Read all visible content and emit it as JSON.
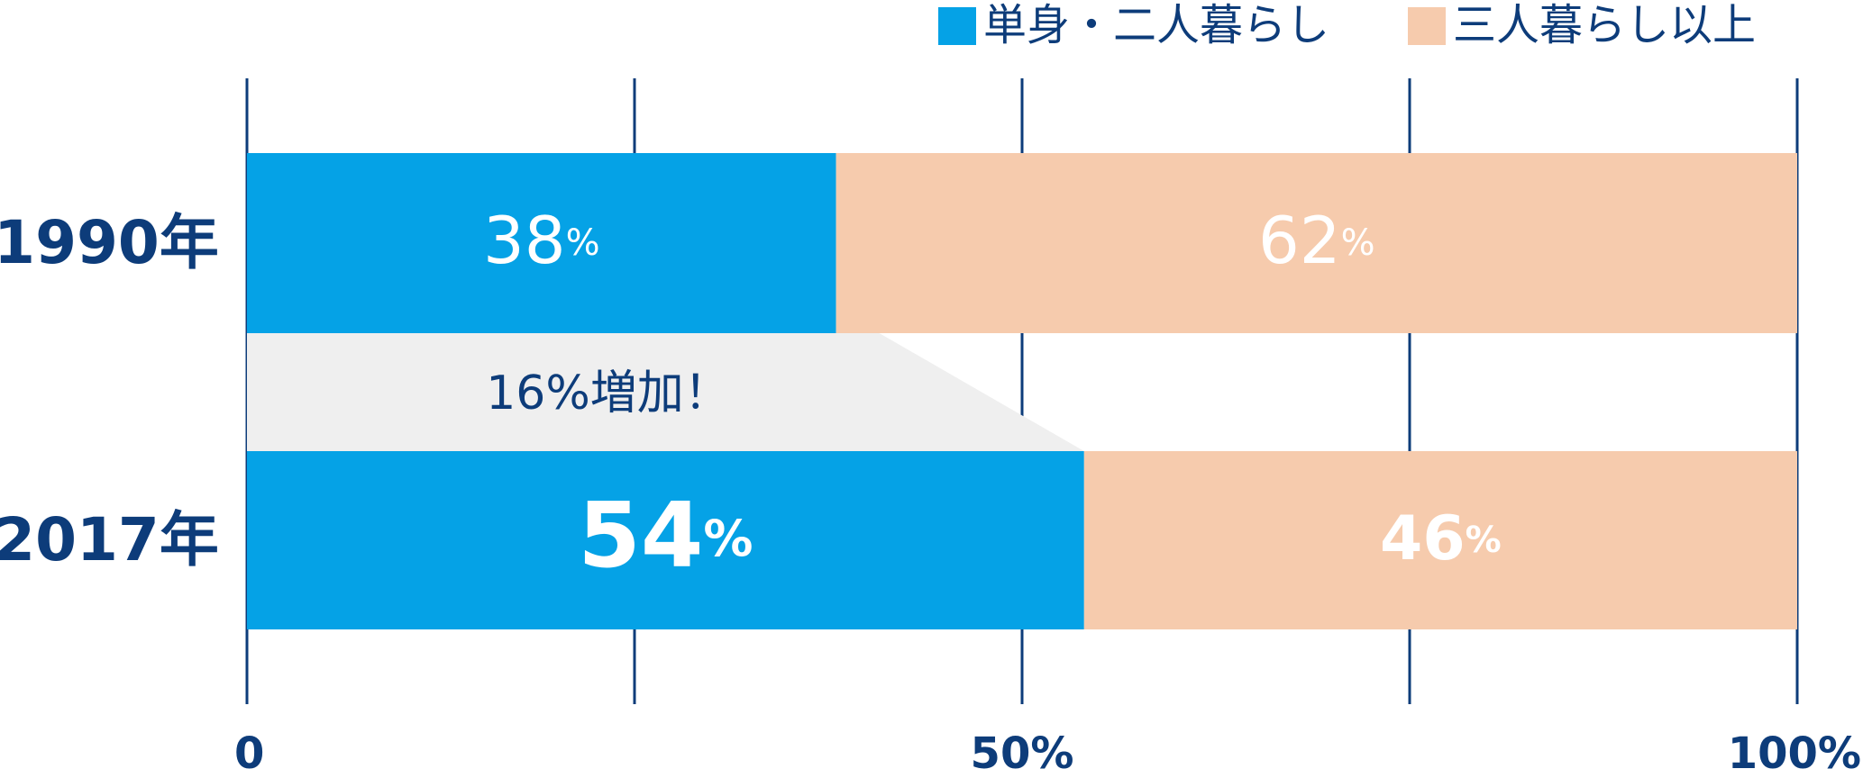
{
  "chart_data": {
    "type": "stacked-barh",
    "categories": [
      "1990年",
      "2017年"
    ],
    "series": [
      {
        "name": "単身・二人暮らし",
        "color": "#05a2e6",
        "values": [
          38,
          54
        ],
        "value_labels": [
          "38%",
          "54%"
        ]
      },
      {
        "name": "三人暮らし以上",
        "color": "#f6cbad",
        "values": [
          62,
          46
        ],
        "value_labels": [
          "62%",
          "46%"
        ]
      }
    ],
    "xlim": [
      0,
      100
    ],
    "xticks": [
      0,
      {
        "value": 25,
        "label": null
      },
      {
        "value": 50,
        "label": "50%"
      },
      {
        "value": 75,
        "label": null
      },
      {
        "value": 100,
        "label": "100%"
      }
    ],
    "grid": true,
    "annotation": "16%増加！"
  }
}
